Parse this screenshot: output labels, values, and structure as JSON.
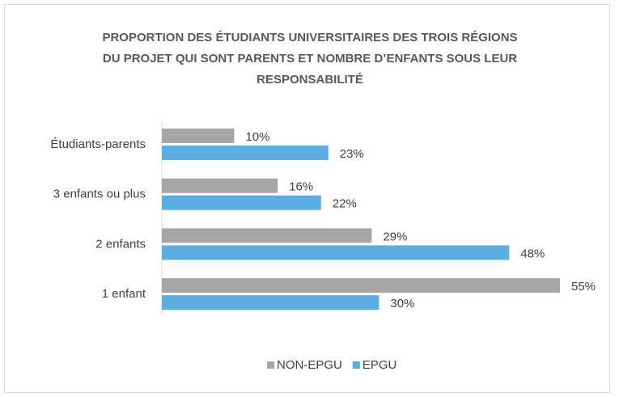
{
  "chart_data": {
    "type": "hbar",
    "title": [
      "PROPORTION DES ÉTUDIANTS UNIVERSITAIRES DES TROIS RÉGIONS",
      "DU PROJET QUI SONT PARENTS ET NOMBRE D’ENFANTS SOUS LEUR",
      "RESPONSABILITÉ"
    ],
    "categories": [
      "Étudiants-parents",
      "3 enfants ou plus",
      "2 enfants",
      "1 enfant"
    ],
    "series": [
      {
        "name": "NON-EPGU",
        "color": "#a6a6a6",
        "values": [
          10,
          16,
          29,
          55
        ],
        "value_labels": [
          "10%",
          "16%",
          "29%",
          "55%"
        ]
      },
      {
        "name": "EPGU",
        "color": "#5aaee3",
        "values": [
          23,
          22,
          48,
          30
        ],
        "value_labels": [
          "23%",
          "22%",
          "48%",
          "30%"
        ]
      }
    ],
    "legend": "bottom"
  }
}
